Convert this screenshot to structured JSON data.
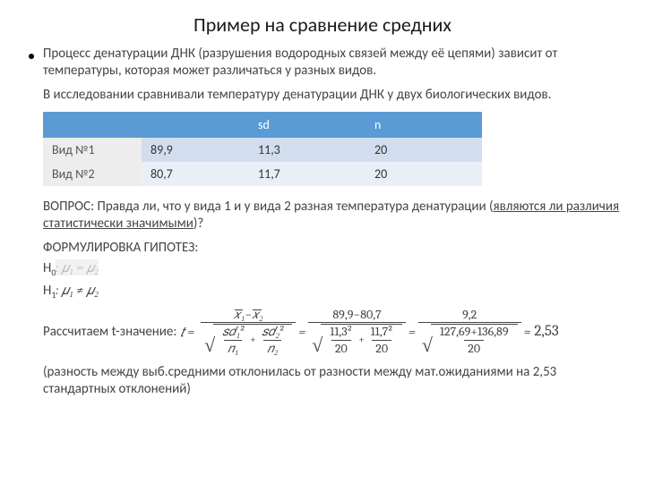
{
  "title": "Пример на сравнение средних",
  "intro1": "Процесс денатурации ДНК (разрушения водородных связей между её цепями) зависит от температуры, которая может различаться у разных видов.",
  "intro2": "В исследовании сравнивали температуру денатурации ДНК у двух биологических видов.",
  "table": {
    "header_bg": "#5b9bd5",
    "row1_bg": "#d2deef",
    "row2_bg": "#eaeff7",
    "label_bg": "#ededed",
    "columns": [
      "",
      "",
      "sd",
      "n"
    ],
    "rows": [
      [
        "Вид №1",
        "89,9",
        "11,3",
        "20"
      ],
      [
        "Вид №2",
        "80,7",
        "11,7",
        "20"
      ]
    ],
    "col_widths": [
      "110px",
      "120px",
      "130px",
      "130px"
    ]
  },
  "question_prefix": "ВОПРОС: Правда ли, что у вида 1 и у вида 2 разная температура денатурации (",
  "question_underlined": "являются ли различия статистически значимыми",
  "question_suffix": ")?",
  "hyp_title": "ФОРМУЛИРОВКА ГИПОТЕЗ:",
  "h0_label": "H",
  "h0_sub": "0",
  "h0_body": ": 𝜇₁ = 𝜇₂",
  "h1_label": "H",
  "h1_sub": "1",
  "h1_body": ": 𝜇₁ ≠ 𝜇₂",
  "formula_label": "Рассчитаем t-значение: ",
  "t_sym": "𝑡 =",
  "frac1_num_x1": "𝑥₁",
  "frac1_num_x2": "𝑥₂",
  "eq": " = ",
  "frac2_num": "89,9−80,7",
  "frac2_den_a": "11,3²",
  "frac2_den_b": "11,7²",
  "frac2_den_na": "20",
  "frac2_den_nb": "20",
  "frac3_num": "9,2",
  "frac3_den_top": "127,69+136,89",
  "frac3_den_bot": "20",
  "approx": " ≈ ",
  "result": "2,53",
  "frac1_den_sd1": "𝑠𝑑₁²",
  "frac1_den_n1": "𝑛₁",
  "frac1_den_sd2": "𝑠𝑑₂²",
  "frac1_den_n2": "𝑛₂",
  "closing": "(разность между выб.средними отклонилась от разности между мат.ожиданиями на 2,53 стандартных отклонений)"
}
